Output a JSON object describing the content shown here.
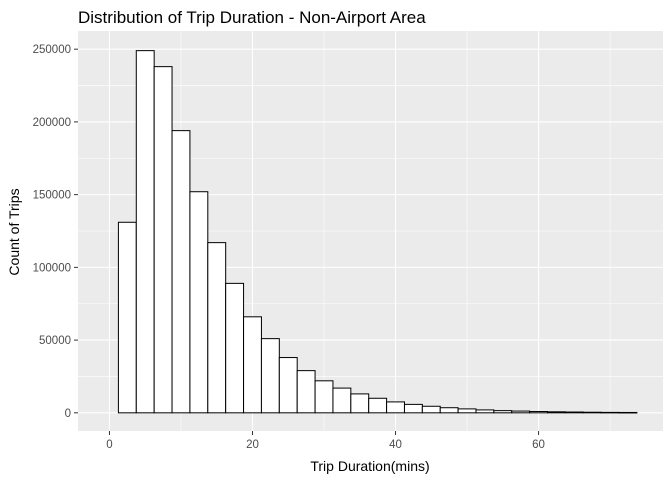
{
  "chart_data": {
    "type": "bar",
    "title": "Distribution of Trip Duration - Non-Airport Area",
    "xlabel": "Trip Duration(mins)",
    "ylabel": "Count of Trips",
    "xlim": [
      -4.4,
      77.4
    ],
    "ylim": [
      -12500,
      262500
    ],
    "x_ticks": [
      0,
      20,
      40,
      60
    ],
    "y_ticks": [
      0,
      50000,
      100000,
      150000,
      200000,
      250000
    ],
    "grid": true,
    "panel_color": "#ebebeb",
    "bar_fill": "#ffffff",
    "bar_stroke": "#000000",
    "bin_width": 2.5,
    "bin_centers": [
      2.5,
      5.0,
      7.5,
      10.0,
      12.5,
      15.0,
      17.5,
      20.0,
      22.5,
      25.0,
      27.5,
      30.0,
      32.5,
      35.0,
      37.5,
      40.0,
      42.5,
      45.0,
      47.5,
      50.0,
      52.5,
      55.0,
      57.5,
      60.0,
      62.5,
      65.0,
      67.5,
      70.0,
      72.5
    ],
    "values": [
      131000,
      249000,
      238000,
      194000,
      152000,
      117000,
      89000,
      66000,
      51000,
      38000,
      29000,
      22000,
      17000,
      13000,
      10000,
      7500,
      5800,
      4500,
      3500,
      2700,
      2000,
      1500,
      1200,
      900,
      700,
      550,
      400,
      300,
      250
    ]
  }
}
